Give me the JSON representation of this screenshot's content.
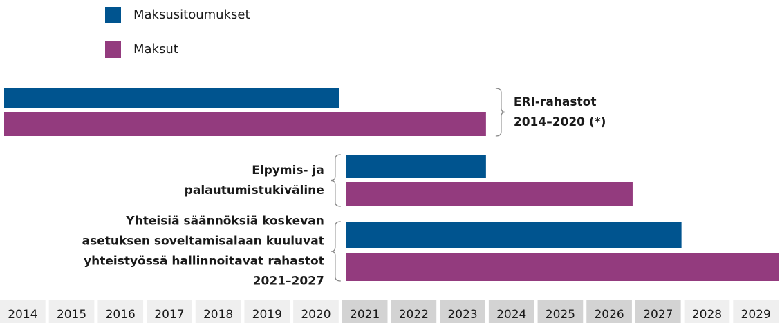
{
  "chart_data": {
    "type": "gantt",
    "categories": [
      "2014",
      "2015",
      "2016",
      "2017",
      "2018",
      "2019",
      "2020",
      "2021",
      "2022",
      "2023",
      "2024",
      "2025",
      "2026",
      "2027",
      "2028",
      "2029"
    ],
    "highlight": [
      2021,
      2027
    ],
    "series": [
      {
        "name": "Maksusitoumukset",
        "color": "#00548f"
      },
      {
        "name": "Maksut",
        "color": "#933b7e"
      }
    ],
    "groups": [
      {
        "label": [
          "ERI-rahastot",
          "2014–2020 (*)"
        ],
        "bars": [
          {
            "start": 2014,
            "end": 2020
          },
          {
            "start": 2014,
            "end": 2023
          }
        ]
      },
      {
        "label": [
          "Elpymis- ja",
          "palautumistukiväline"
        ],
        "bars": [
          {
            "start": 2021,
            "end": 2023
          },
          {
            "start": 2021,
            "end": 2026
          }
        ]
      },
      {
        "label": [
          "Yhteisiä säännöksiä koskevan",
          "asetuksen soveltamisalaan kuuluvat",
          "yhteistyössä hallinnoitavat rahastot",
          "2021–2027"
        ],
        "bars": [
          {
            "start": 2021,
            "end": 2027
          },
          {
            "start": 2021,
            "end": 2029
          }
        ]
      }
    ]
  }
}
